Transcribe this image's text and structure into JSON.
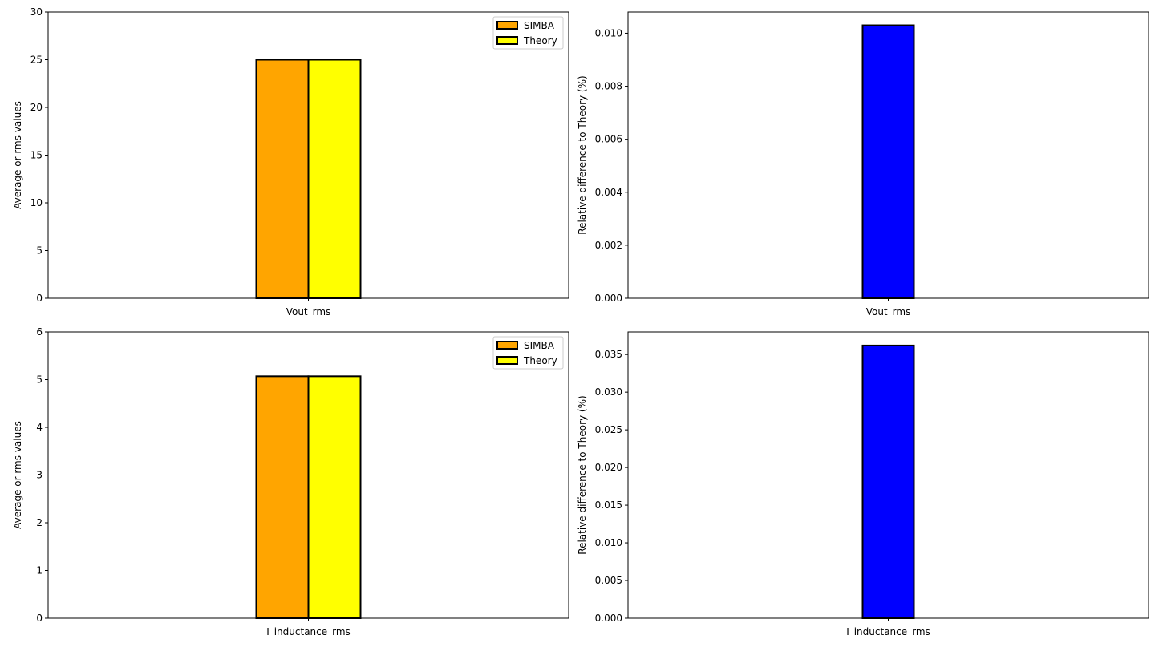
{
  "chart_data": [
    {
      "id": "avg-vout",
      "type": "bar",
      "categories": [
        "Vout_rms"
      ],
      "series": [
        {
          "name": "SIMBA",
          "values": [
            25.0
          ],
          "color": "#FFA500"
        },
        {
          "name": "Theory",
          "values": [
            25.0
          ],
          "color": "#FFFF00"
        }
      ],
      "ylabel": "Average or rms values",
      "xlabel": "",
      "ylim": [
        0,
        30
      ],
      "yticks": [
        0,
        5,
        10,
        15,
        20,
        25,
        30
      ],
      "ytick_labels": [
        "0",
        "5",
        "10",
        "15",
        "20",
        "25",
        "30"
      ],
      "legend": {
        "placement": "top-right",
        "entries": [
          "SIMBA",
          "Theory"
        ]
      },
      "grid": false
    },
    {
      "id": "reldiff-vout",
      "type": "bar",
      "categories": [
        "Vout_rms"
      ],
      "series": [
        {
          "name": "Relative difference",
          "values": [
            0.0103
          ],
          "color": "#0000FF"
        }
      ],
      "ylabel": "Relative difference to Theory (%)",
      "xlabel": "",
      "ylim": [
        0,
        0.0108
      ],
      "yticks": [
        0,
        0.002,
        0.004,
        0.006,
        0.008,
        0.01
      ],
      "ytick_labels": [
        "0.000",
        "0.002",
        "0.004",
        "0.006",
        "0.008",
        "0.010"
      ],
      "grid": false
    },
    {
      "id": "avg-iind",
      "type": "bar",
      "categories": [
        "I_inductance_rms"
      ],
      "series": [
        {
          "name": "SIMBA",
          "values": [
            5.07
          ],
          "color": "#FFA500"
        },
        {
          "name": "Theory",
          "values": [
            5.07
          ],
          "color": "#FFFF00"
        }
      ],
      "ylabel": "Average or rms values",
      "xlabel": "",
      "ylim": [
        0,
        6
      ],
      "yticks": [
        0,
        1,
        2,
        3,
        4,
        5,
        6
      ],
      "ytick_labels": [
        "0",
        "1",
        "2",
        "3",
        "4",
        "5",
        "6"
      ],
      "legend": {
        "placement": "top-right",
        "entries": [
          "SIMBA",
          "Theory"
        ]
      },
      "grid": false
    },
    {
      "id": "reldiff-iind",
      "type": "bar",
      "categories": [
        "I_inductance_rms"
      ],
      "series": [
        {
          "name": "Relative difference",
          "values": [
            0.0362
          ],
          "color": "#0000FF"
        }
      ],
      "ylabel": "Relative difference to Theory (%)",
      "xlabel": "",
      "ylim": [
        0,
        0.038
      ],
      "yticks": [
        0,
        0.005,
        0.01,
        0.015,
        0.02,
        0.025,
        0.03,
        0.035
      ],
      "ytick_labels": [
        "0.000",
        "0.005",
        "0.010",
        "0.015",
        "0.020",
        "0.025",
        "0.030",
        "0.035"
      ],
      "grid": false
    }
  ]
}
